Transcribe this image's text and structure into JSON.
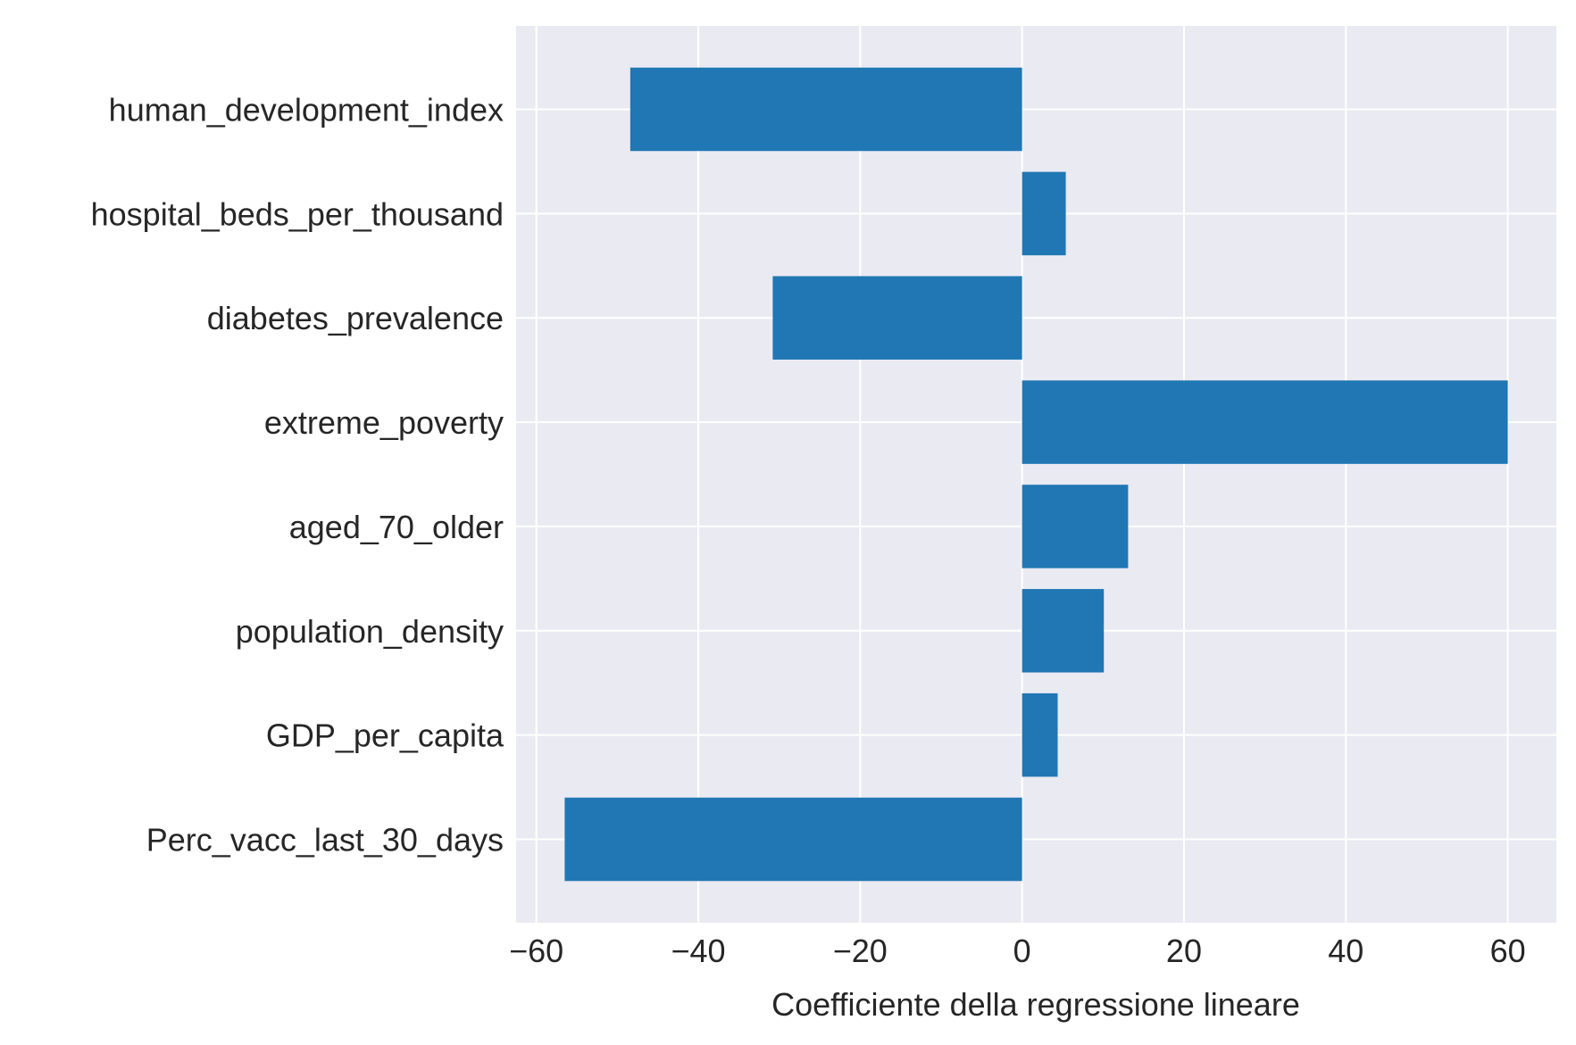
{
  "chart_data": {
    "type": "bar",
    "orientation": "horizontal",
    "title": "",
    "xlabel": "Coefficiente della regressione lineare",
    "ylabel": "",
    "categories": [
      "human_development_index",
      "hospital_beds_per_thousand",
      "diabetes_prevalence",
      "extreme_poverty",
      "aged_70_older",
      "population_density",
      "GDP_per_capita",
      "Perc_vacc_last_30_days"
    ],
    "values": [
      -48.4,
      5.4,
      -30.8,
      60.0,
      13.1,
      10.1,
      4.4,
      -56.5
    ],
    "xlim": [
      -62.5,
      66.0
    ],
    "xticks": [
      -60,
      -40,
      -20,
      0,
      20,
      40,
      60
    ],
    "xtick_labels": [
      "−60",
      "−40",
      "−20",
      "0",
      "20",
      "40",
      "60"
    ],
    "grid": true,
    "legend": "none",
    "colors": {
      "bar": "#2077b4",
      "background": "#eaeaf2",
      "grid": "#ffffff",
      "text": "#262626"
    }
  }
}
